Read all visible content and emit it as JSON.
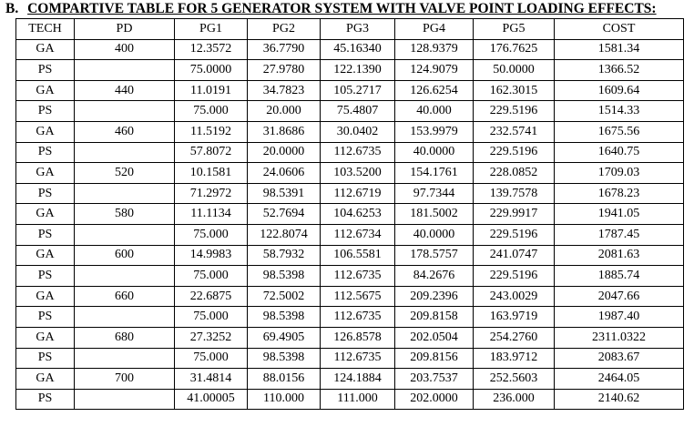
{
  "heading": {
    "label": "B.",
    "title": "COMPARTIVE TABLE FOR 5 GENERATOR SYSTEM WITH VALVE POINT LOADING EFFECTS:"
  },
  "table": {
    "headers": [
      "TECH",
      "PD",
      "PG1",
      "PG2",
      "PG3",
      "PG4",
      "PG5",
      "COST"
    ],
    "rows": [
      [
        "GA",
        "400",
        "12.3572",
        "36.7790",
        "45.16340",
        "128.9379",
        "176.7625",
        "1581.34"
      ],
      [
        "PS",
        "",
        "75.0000",
        "27.9780",
        "122.1390",
        "124.9079",
        "50.0000",
        "1366.52"
      ],
      [
        "GA",
        "440",
        "11.0191",
        "34.7823",
        "105.2717",
        "126.6254",
        "162.3015",
        "1609.64"
      ],
      [
        "PS",
        "",
        "75.000",
        "20.000",
        "75.4807",
        "40.000",
        "229.5196",
        "1514.33"
      ],
      [
        "GA",
        "460",
        "11.5192",
        "31.8686",
        "30.0402",
        "153.9979",
        "232.5741",
        "1675.56"
      ],
      [
        "PS",
        "",
        "57.8072",
        "20.0000",
        "112.6735",
        "40.0000",
        "229.5196",
        "1640.75"
      ],
      [
        "GA",
        "520",
        "10.1581",
        "24.0606",
        "103.5200",
        "154.1761",
        "228.0852",
        "1709.03"
      ],
      [
        "PS",
        "",
        "71.2972",
        "98.5391",
        "112.6719",
        "97.7344",
        "139.7578",
        "1678.23"
      ],
      [
        "GA",
        "580",
        "11.1134",
        "52.7694",
        "104.6253",
        "181.5002",
        "229.9917",
        "1941.05"
      ],
      [
        "PS",
        "",
        "75.000",
        "122.8074",
        "112.6734",
        "40.0000",
        "229.5196",
        "1787.45"
      ],
      [
        "GA",
        "600",
        "14.9983",
        "58.7932",
        "106.5581",
        "178.5757",
        "241.0747",
        "2081.63"
      ],
      [
        "PS",
        "",
        "75.000",
        "98.5398",
        "112.6735",
        "84.2676",
        "229.5196",
        "1885.74"
      ],
      [
        "GA",
        "660",
        "22.6875",
        "72.5002",
        "112.5675",
        "209.2396",
        "243.0029",
        "2047.66"
      ],
      [
        "PS",
        "",
        "75.000",
        "98.5398",
        "112.6735",
        "209.8158",
        "163.9719",
        "1987.40"
      ],
      [
        "GA",
        "680",
        "27.3252",
        "69.4905",
        "126.8578",
        "202.0504",
        "254.2760",
        "2311.0322"
      ],
      [
        "PS",
        "",
        "75.000",
        "98.5398",
        "112.6735",
        "209.8156",
        "183.9712",
        "2083.67"
      ],
      [
        "GA",
        "700",
        "31.4814",
        "88.0156",
        "124.1884",
        "203.7537",
        "252.5603",
        "2464.05"
      ],
      [
        "PS",
        "",
        "41.00005",
        "110.000",
        "111.000",
        "202.0000",
        "236.000",
        "2140.62"
      ]
    ]
  }
}
